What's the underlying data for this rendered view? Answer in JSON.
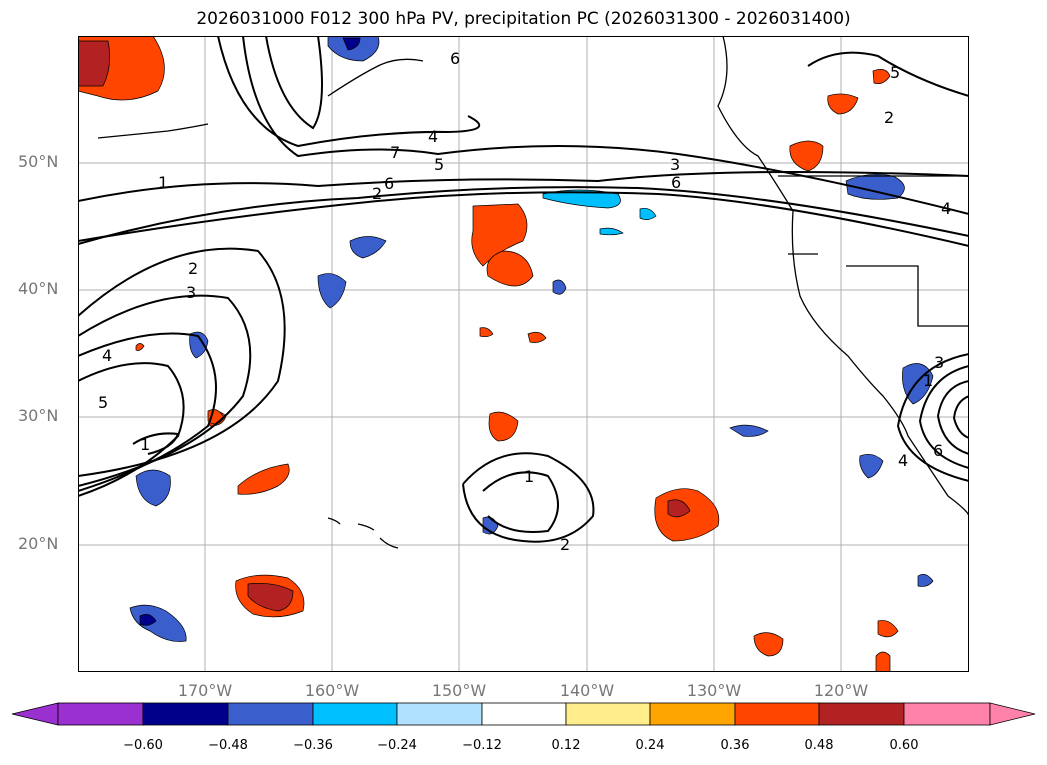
{
  "title": "2026031000 F012 300 hPa PV, precipitation PC (2026031300 - 2026031400)",
  "axes": {
    "lat_labels": [
      "50°N",
      "40°N",
      "30°N",
      "20°N"
    ],
    "lon_labels": [
      "170°W",
      "160°W",
      "150°W",
      "140°W",
      "130°W",
      "120°W"
    ]
  },
  "colorbar": {
    "ticks": [
      "−0.60",
      "−0.48",
      "−0.36",
      "−0.24",
      "−0.12",
      "0.12",
      "0.24",
      "0.36",
      "0.48",
      "0.60"
    ],
    "colors": [
      "#9b30d0",
      "#00008b",
      "#3a5fcd",
      "#00bfff",
      "#b0e2ff",
      "#ffffff",
      "#ffec8b",
      "#ffa500",
      "#ff4500",
      "#b22222",
      "#ff82ab"
    ]
  },
  "contour_labels": [
    "1",
    "2",
    "3",
    "4",
    "5",
    "1",
    "2",
    "6",
    "7",
    "4",
    "5",
    "3",
    "6",
    "6",
    "4",
    "5",
    "2",
    "1",
    "2",
    "3",
    "1",
    "4",
    "6"
  ],
  "colors": {
    "negative": "#3a5fcd",
    "positive": "#ff4500",
    "strong_positive": "#b22222",
    "grid": "#b0b0b0"
  }
}
